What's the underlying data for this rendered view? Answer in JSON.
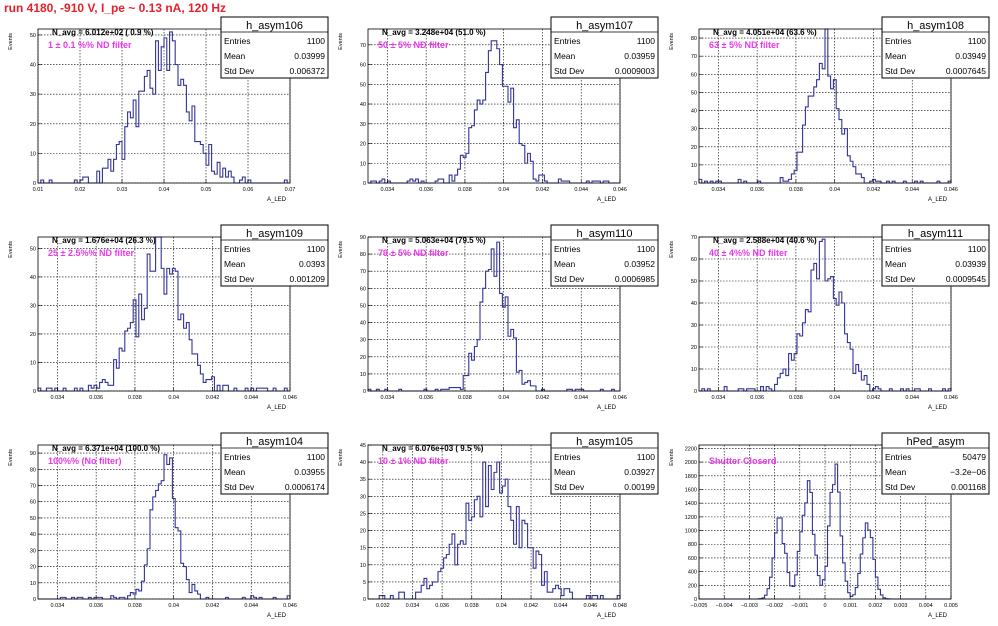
{
  "header": {
    "run_title": "run 4180,  -910 V, I_pe ~ 0.13 nA, 120 Hz"
  },
  "stats_labels": {
    "entries": "Entries",
    "mean": "Mean",
    "stddev": "Std Dev"
  },
  "axis_labels": {
    "y": "Events",
    "x": "A_LED"
  },
  "colors": {
    "hist": "#33339a",
    "filter_text": "#e838e8",
    "title_red": "#e8202b"
  },
  "chart_data": [
    {
      "type": "histogram",
      "name": "h_asym106",
      "navg": "N_avg = 6.012e+02 ( 0.9 %)",
      "filter": "1 ± 0.1 %% ND filter",
      "entries": "1100",
      "mean": "0.03999",
      "stddev": "0.006372",
      "xlim": [
        0.01,
        0.07
      ],
      "xticks": [
        "0.01",
        "0.02",
        "0.03",
        "0.04",
        "0.05",
        "0.06",
        "0.07"
      ],
      "ylim": [
        0,
        52
      ],
      "yticks": [
        "0",
        "10",
        "20",
        "30",
        "40",
        "50"
      ],
      "dist": {
        "mu": 0.04,
        "sigma": 0.0064,
        "peak": 42,
        "nbins": 90,
        "seed": 106
      }
    },
    {
      "type": "histogram",
      "name": "h_asym107",
      "navg": "N_avg = 3.248e+04 (51.0 %)",
      "filter": "50 ± 5% ND filter",
      "entries": "1100",
      "mean": "0.03959",
      "stddev": "0.0009003",
      "xlim": [
        0.033,
        0.046
      ],
      "xticks": [
        "0.034",
        "0.036",
        "0.038",
        "0.04",
        "0.042",
        "0.044",
        "0.046"
      ],
      "ylim": [
        0,
        78
      ],
      "yticks": [
        "0",
        "10",
        "20",
        "30",
        "40",
        "50",
        "60",
        "70"
      ],
      "dist": {
        "mu": 0.0396,
        "sigma": 0.0009,
        "peak": 62,
        "nbins": 90,
        "seed": 107
      }
    },
    {
      "type": "histogram",
      "name": "h_asym108",
      "navg": "N_avg = 4.051e+04 (63.6 %)",
      "filter": "63 ± 5% ND filter",
      "entries": "1100",
      "mean": "0.03949",
      "stddev": "0.0007645",
      "xlim": [
        0.033,
        0.046
      ],
      "xticks": [
        "0.034",
        "0.036",
        "0.038",
        "0.04",
        "0.042",
        "0.044",
        "0.046"
      ],
      "ylim": [
        0,
        85
      ],
      "yticks": [
        "0",
        "10",
        "20",
        "30",
        "40",
        "50",
        "60",
        "70",
        "80"
      ],
      "dist": {
        "mu": 0.0395,
        "sigma": 0.00076,
        "peak": 72,
        "nbins": 90,
        "seed": 108
      }
    },
    {
      "type": "histogram",
      "name": "h_asym109",
      "navg": "N_avg = 1.676e+04 (26.3 %)",
      "filter": "25 ± 2.5%% ND filter",
      "entries": "1100",
      "mean": "0.0393",
      "stddev": "0.001209",
      "xlim": [
        0.033,
        0.046
      ],
      "xticks": [
        "0.034",
        "0.036",
        "0.038",
        "0.04",
        "0.042",
        "0.044",
        "0.046"
      ],
      "ylim": [
        0,
        54
      ],
      "yticks": [
        "0",
        "10",
        "20",
        "30",
        "40",
        "50"
      ],
      "dist": {
        "mu": 0.0393,
        "sigma": 0.0012,
        "peak": 45,
        "nbins": 90,
        "seed": 109
      }
    },
    {
      "type": "histogram",
      "name": "h_asym110",
      "navg": "N_avg = 5.063e+04 (79.5 %)",
      "filter": "79 ± 5% ND filter",
      "entries": "1100",
      "mean": "0.03952",
      "stddev": "0.0006985",
      "xlim": [
        0.033,
        0.046
      ],
      "xticks": [
        "0.034",
        "0.036",
        "0.038",
        "0.04",
        "0.042",
        "0.044",
        "0.046"
      ],
      "ylim": [
        0,
        90
      ],
      "yticks": [
        "0",
        "10",
        "20",
        "30",
        "40",
        "50",
        "60",
        "70",
        "80",
        "90"
      ],
      "dist": {
        "mu": 0.03952,
        "sigma": 0.0007,
        "peak": 78,
        "nbins": 90,
        "seed": 110
      }
    },
    {
      "type": "histogram",
      "name": "h_asym111",
      "navg": "N_avg = 2.588e+04 (40.6 %)",
      "filter": "40 ± 4%% ND filter",
      "entries": "1100",
      "mean": "0.03939",
      "stddev": "0.0009545",
      "xlim": [
        0.033,
        0.046
      ],
      "xticks": [
        "0.034",
        "0.036",
        "0.038",
        "0.04",
        "0.042",
        "0.044",
        "0.046"
      ],
      "ylim": [
        0,
        70
      ],
      "yticks": [
        "0",
        "10",
        "20",
        "30",
        "40",
        "50",
        "60",
        "70"
      ],
      "dist": {
        "mu": 0.0394,
        "sigma": 0.00095,
        "peak": 58,
        "nbins": 90,
        "seed": 111
      }
    },
    {
      "type": "histogram",
      "name": "h_asym104",
      "navg": "N_avg = 6.371e+04 (100.0 %)",
      "filter": "100%% (No filter)",
      "entries": "1100",
      "mean": "0.03955",
      "stddev": "0.0006174",
      "xlim": [
        0.033,
        0.046
      ],
      "xticks": [
        "0.034",
        "0.036",
        "0.038",
        "0.04",
        "0.042",
        "0.044",
        "0.046"
      ],
      "ylim": [
        0,
        95
      ],
      "yticks": [
        "0",
        "10",
        "20",
        "30",
        "40",
        "50",
        "60",
        "70",
        "80",
        "90"
      ],
      "dist": {
        "mu": 0.03955,
        "sigma": 0.00062,
        "peak": 84,
        "nbins": 90,
        "seed": 104
      }
    },
    {
      "type": "histogram",
      "name": "h_asym105",
      "navg": "N_avg = 6.076e+03 ( 9.5 %)",
      "filter": "10 ± 1% ND filter",
      "entries": "1100",
      "mean": "0.03927",
      "stddev": "0.00199",
      "xlim": [
        0.031,
        0.048
      ],
      "xticks": [
        "0.032",
        "0.034",
        "0.036",
        "0.038",
        "0.04",
        "0.042",
        "0.044",
        "0.046",
        "0.048"
      ],
      "ylim": [
        0,
        45
      ],
      "yticks": [
        "0",
        "5",
        "10",
        "15",
        "20",
        "25",
        "30",
        "35",
        "40",
        "45"
      ],
      "dist": {
        "mu": 0.0393,
        "sigma": 0.002,
        "peak": 33,
        "nbins": 90,
        "seed": 105
      }
    },
    {
      "type": "histogram",
      "name": "hPed_asym",
      "navg": "",
      "filter": "Shutter Closerd",
      "entries": "50479",
      "mean": "−3.2e−06",
      "stddev": "0.001168",
      "xlim": [
        -0.005,
        0.005
      ],
      "xticks": [
        "−0.005",
        "−0.004",
        "−0.003",
        "−0.002",
        "−0.001",
        "0",
        "0.001",
        "0.002",
        "0.003",
        "0.004",
        "0.005"
      ],
      "ylim": [
        0,
        2250
      ],
      "yticks": [
        "0",
        "200",
        "400",
        "600",
        "800",
        "1000",
        "1200",
        "1400",
        "1600",
        "1800",
        "2000",
        "2200"
      ],
      "dist": {
        "multi": true,
        "nbins": 100,
        "seed": 99
      }
    }
  ]
}
